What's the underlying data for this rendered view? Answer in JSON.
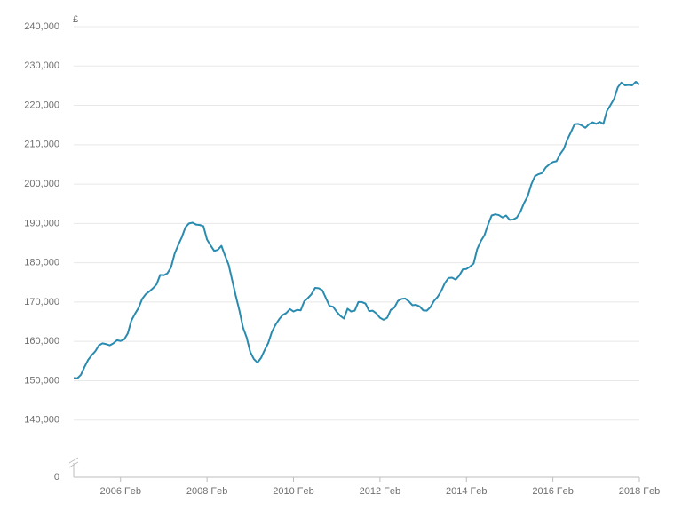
{
  "chart_data": {
    "type": "line",
    "y_label": "£",
    "color": "#2a8bb0",
    "grid": true,
    "y_break": [
      0,
      130000
    ],
    "ylim": [
      0,
      240000
    ],
    "yticks": [
      0,
      {
        "value": 140000,
        "label": "140,000"
      },
      {
        "value": 150000,
        "label": "150,000"
      },
      {
        "value": 160000,
        "label": "160,000"
      },
      {
        "value": 170000,
        "label": "170,000"
      },
      {
        "value": 180000,
        "label": "180,000"
      },
      {
        "value": 190000,
        "label": "190,000"
      },
      {
        "value": 200000,
        "label": "200,000"
      },
      {
        "value": 210000,
        "label": "210,000"
      },
      {
        "value": 220000,
        "label": "220,000"
      },
      {
        "value": 230000,
        "label": "230,000"
      },
      {
        "value": 240000,
        "label": "240,000"
      }
    ],
    "xticks": [
      "2006 Feb",
      "2008 Feb",
      "2010 Feb",
      "2012 Feb",
      "2014 Feb",
      "2016 Feb",
      "2018 Feb"
    ],
    "x": [
      "2005 Jan",
      "2005 Feb",
      "2005 Mar",
      "2005 Apr",
      "2005 May",
      "2005 Jun",
      "2005 Jul",
      "2005 Aug",
      "2005 Sep",
      "2005 Oct",
      "2005 Nov",
      "2005 Dec",
      "2006 Jan",
      "2006 Feb",
      "2006 Mar",
      "2006 Apr",
      "2006 May",
      "2006 Jun",
      "2006 Jul",
      "2006 Aug",
      "2006 Sep",
      "2006 Oct",
      "2006 Nov",
      "2006 Dec",
      "2007 Jan",
      "2007 Feb",
      "2007 Mar",
      "2007 Apr",
      "2007 May",
      "2007 Jun",
      "2007 Jul",
      "2007 Aug",
      "2007 Sep",
      "2007 Oct",
      "2007 Nov",
      "2007 Dec",
      "2008 Jan",
      "2008 Feb",
      "2008 Mar",
      "2008 Apr",
      "2008 May",
      "2008 Jun",
      "2008 Jul",
      "2008 Aug",
      "2008 Sep",
      "2008 Oct",
      "2008 Nov",
      "2008 Dec",
      "2009 Jan",
      "2009 Feb",
      "2009 Mar",
      "2009 Apr",
      "2009 May",
      "2009 Jun",
      "2009 Jul",
      "2009 Aug",
      "2009 Sep",
      "2009 Oct",
      "2009 Nov",
      "2009 Dec",
      "2010 Jan",
      "2010 Feb",
      "2010 Mar",
      "2010 Apr",
      "2010 May",
      "2010 Jun",
      "2010 Jul",
      "2010 Aug",
      "2010 Sep",
      "2010 Oct",
      "2010 Nov",
      "2010 Dec",
      "2011 Jan",
      "2011 Feb",
      "2011 Mar",
      "2011 Apr",
      "2011 May",
      "2011 Jun",
      "2011 Jul",
      "2011 Aug",
      "2011 Sep",
      "2011 Oct",
      "2011 Nov",
      "2011 Dec",
      "2012 Jan",
      "2012 Feb",
      "2012 Mar",
      "2012 Apr",
      "2012 May",
      "2012 Jun",
      "2012 Jul",
      "2012 Aug",
      "2012 Sep",
      "2012 Oct",
      "2012 Nov",
      "2012 Dec",
      "2013 Jan",
      "2013 Feb",
      "2013 Mar",
      "2013 Apr",
      "2013 May",
      "2013 Jun",
      "2013 Jul",
      "2013 Aug",
      "2013 Sep",
      "2013 Oct",
      "2013 Nov",
      "2013 Dec",
      "2014 Jan",
      "2014 Feb",
      "2014 Mar",
      "2014 Apr",
      "2014 May",
      "2014 Jun",
      "2014 Jul",
      "2014 Aug",
      "2014 Sep",
      "2014 Oct",
      "2014 Nov",
      "2014 Dec",
      "2015 Jan",
      "2015 Feb",
      "2015 Mar",
      "2015 Apr",
      "2015 May",
      "2015 Jun",
      "2015 Jul",
      "2015 Aug",
      "2015 Sep",
      "2015 Oct",
      "2015 Nov",
      "2015 Dec",
      "2016 Jan",
      "2016 Feb",
      "2016 Mar",
      "2016 Apr",
      "2016 May",
      "2016 Jun",
      "2016 Jul",
      "2016 Aug",
      "2016 Sep",
      "2016 Oct",
      "2016 Nov",
      "2016 Dec",
      "2017 Jan",
      "2017 Feb",
      "2017 Mar",
      "2017 Apr",
      "2017 May",
      "2017 Jun",
      "2017 Jul",
      "2017 Aug",
      "2017 Sep",
      "2017 Oct",
      "2017 Nov",
      "2017 Dec",
      "2018 Jan",
      "2018 Feb"
    ],
    "values": [
      150700,
      150600,
      151500,
      153500,
      155300,
      156500,
      157500,
      159000,
      159500,
      159300,
      159000,
      159500,
      160300,
      160100,
      160500,
      162000,
      165300,
      167000,
      168500,
      170800,
      172000,
      172700,
      173500,
      174500,
      176900,
      176800,
      177300,
      178800,
      182300,
      184500,
      186500,
      189000,
      190000,
      190200,
      189700,
      189600,
      189300,
      185900,
      184400,
      183000,
      183300,
      184300,
      181800,
      179500,
      175500,
      171500,
      167800,
      163500,
      161000,
      157300,
      155500,
      154600,
      155800,
      157800,
      159600,
      162400,
      164200,
      165600,
      166700,
      167200,
      168200,
      167600,
      168000,
      167900,
      170200,
      171000,
      172000,
      173600,
      173500,
      173000,
      171000,
      169000,
      168800,
      167500,
      166500,
      165800,
      168300,
      167600,
      167800,
      170000,
      170000,
      169600,
      167700,
      167800,
      167100,
      166000,
      165500,
      166000,
      168000,
      168600,
      170300,
      170800,
      170900,
      170200,
      169200,
      169300,
      168900,
      167900,
      167800,
      168700,
      170300,
      171300,
      172800,
      174800,
      176100,
      176200,
      175700,
      176700,
      178300,
      178400,
      179000,
      179800,
      183500,
      185500,
      187000,
      189700,
      192000,
      192300,
      192100,
      191500,
      192000,
      190900,
      191000,
      191500,
      193000,
      195200,
      196900,
      199900,
      202000,
      202500,
      202800,
      204200,
      205000,
      205600,
      205800,
      207600,
      208900,
      211300,
      213200,
      215200,
      215300,
      214900,
      214300,
      215200,
      215700,
      215300,
      215800,
      215300,
      218600,
      220100,
      221700,
      224600,
      225800,
      225100,
      225200,
      225100,
      226000,
      225300
    ]
  }
}
